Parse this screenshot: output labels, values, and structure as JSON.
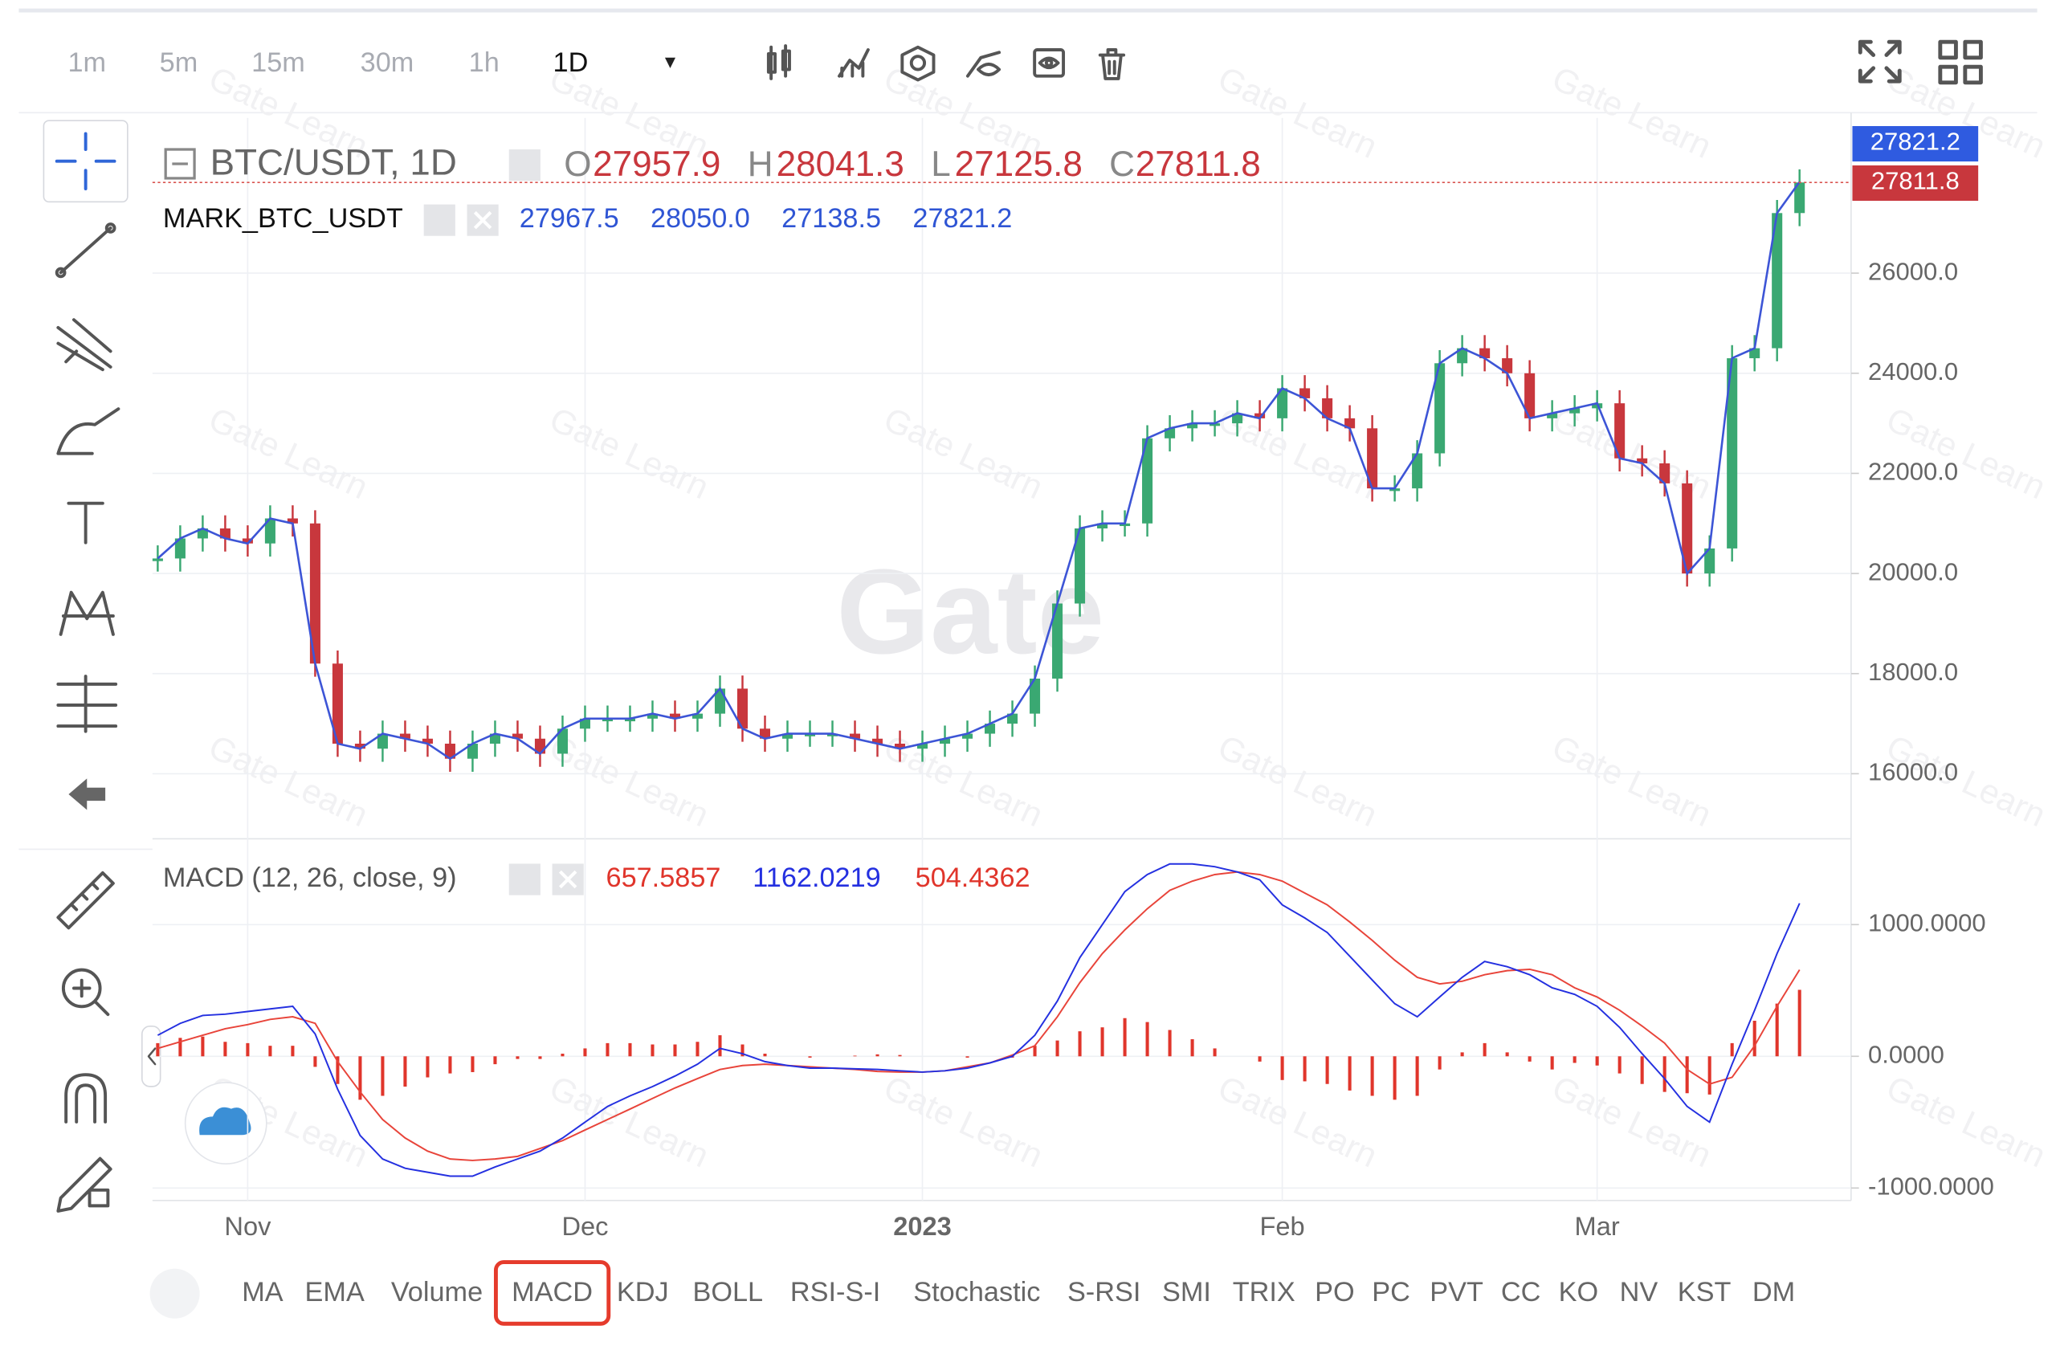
{
  "toolbar": {
    "intervals": [
      "1m",
      "5m",
      "15m",
      "30m",
      "1h",
      "1D"
    ]
  },
  "watermark": "Gate",
  "watermark_small": "Gate Learn",
  "chart_data": [
    {
      "type": "candlestick",
      "ohlc": [
        {
          "label": "O",
          "value": "27957.9"
        },
        {
          "label": "H",
          "value": "28041.3"
        },
        {
          "label": "L",
          "value": "27125.8"
        },
        {
          "label": "C",
          "value": "27811.8"
        }
      ],
      "mark_values": [
        "27967.5",
        "28050.0",
        "27138.5",
        "27821.2"
      ],
      "categories": [
        null,
        null,
        null,
        null,
        "Nov",
        null,
        null,
        null,
        null,
        null,
        null,
        null,
        null,
        null,
        null,
        null,
        null,
        null,
        null,
        "Dec",
        null,
        null,
        null,
        null,
        null,
        null,
        null,
        null,
        null,
        null,
        null,
        null,
        null,
        null,
        "2023",
        null,
        null,
        null,
        null,
        null,
        null,
        null,
        null,
        null,
        null,
        null,
        null,
        null,
        null,
        null,
        "Feb",
        null,
        null,
        null,
        null,
        null,
        null,
        null,
        null,
        null,
        null,
        null,
        null,
        null,
        "Mar",
        null,
        null,
        null,
        null,
        null,
        null,
        null,
        null,
        null
      ],
      "up_color": "#3aa872",
      "down_color": "#c8373d",
      "series": [
        {
          "name": "BTC/USDT, 1D",
          "values": [
            20300,
            20700,
            20900,
            20700,
            20600,
            21100,
            21000,
            18200,
            16600,
            16500,
            16800,
            16700,
            16600,
            16300,
            16600,
            16800,
            16700,
            16400,
            16900,
            17100,
            17100,
            17100,
            17200,
            17100,
            17200,
            17700,
            16900,
            16700,
            16800,
            16800,
            16800,
            16700,
            16600,
            16500,
            16600,
            16700,
            16800,
            17000,
            17200,
            17900,
            19400,
            20900,
            21000,
            21000,
            22700,
            22900,
            23000,
            23000,
            23200,
            23100,
            23700,
            23500,
            23100,
            22900,
            21700,
            21700,
            22400,
            24200,
            24500,
            24300,
            24000,
            23100,
            23200,
            23300,
            23400,
            22300,
            22200,
            21800,
            20000,
            20500,
            24300,
            24500,
            27200,
            27811.8
          ]
        },
        {
          "name": "MARK_BTC_USDT",
          "color": "#3d55d6",
          "values": [
            20300,
            20700,
            20900,
            20700,
            20600,
            21100,
            21000,
            18200,
            16600,
            16500,
            16800,
            16700,
            16600,
            16300,
            16600,
            16800,
            16700,
            16400,
            16900,
            17100,
            17100,
            17100,
            17200,
            17100,
            17200,
            17700,
            16900,
            16700,
            16800,
            16800,
            16800,
            16700,
            16600,
            16500,
            16600,
            16700,
            16800,
            17000,
            17200,
            17900,
            19400,
            20900,
            21000,
            21000,
            22700,
            22900,
            23000,
            23000,
            23200,
            23100,
            23700,
            23500,
            23100,
            22900,
            21700,
            21700,
            22400,
            24200,
            24500,
            24300,
            24000,
            23100,
            23200,
            23300,
            23400,
            22300,
            22200,
            21800,
            20000,
            20500,
            24300,
            24500,
            27200,
            27821.2
          ]
        }
      ],
      "ylim": [
        14700,
        29100
      ],
      "yticks": [
        {
          "value": 16000,
          "label": "16000.0"
        },
        {
          "value": 18000,
          "label": "18000.0"
        },
        {
          "value": 20000,
          "label": "20000.0"
        },
        {
          "value": 22000,
          "label": "22000.0"
        },
        {
          "value": 24000,
          "label": "24000.0"
        },
        {
          "value": 26000,
          "label": "26000.0"
        }
      ],
      "grid": true
    },
    {
      "type": "macd",
      "title": "MACD (12, 26, close, 9)",
      "series": [
        {
          "color": "#e8443a",
          "values": [
            60,
            110,
            160,
            210,
            240,
            280,
            300,
            250,
            -40,
            -270,
            -480,
            -620,
            -720,
            -780,
            -790,
            -780,
            -760,
            -700,
            -640,
            -560,
            -480,
            -400,
            -320,
            -240,
            -170,
            -100,
            -70,
            -60,
            -70,
            -80,
            -90,
            -100,
            -115,
            -120,
            -120,
            -110,
            -80,
            -50,
            10,
            80,
            300,
            560,
            780,
            960,
            1120,
            1260,
            1330,
            1380,
            1400,
            1380,
            1330,
            1240,
            1150,
            1020,
            880,
            730,
            600,
            550,
            570,
            620,
            650,
            660,
            620,
            520,
            450,
            350,
            230,
            100,
            -100,
            -210,
            -160,
            80,
            380,
            657.5857
          ]
        },
        {
          "color": "#2430e0",
          "values": [
            160,
            250,
            310,
            320,
            340,
            360,
            380,
            170,
            -250,
            -600,
            -780,
            -850,
            -880,
            -910,
            -910,
            -840,
            -780,
            -720,
            -620,
            -500,
            -380,
            -300,
            -230,
            -150,
            -60,
            60,
            20,
            -40,
            -70,
            -90,
            -90,
            -95,
            -100,
            -110,
            -120,
            -110,
            -90,
            -50,
            0,
            160,
            420,
            750,
            1000,
            1250,
            1380,
            1460,
            1460,
            1440,
            1400,
            1340,
            1150,
            1050,
            940,
            760,
            580,
            400,
            300,
            450,
            600,
            720,
            680,
            620,
            520,
            470,
            380,
            220,
            20,
            -170,
            -380,
            -500,
            -60,
            350,
            780,
            1162.0219
          ]
        },
        {
          "color": "#e0352b",
          "values": [
            100,
            140,
            150,
            110,
            100,
            80,
            80,
            -80,
            -210,
            -330,
            -300,
            -230,
            -160,
            -130,
            -120,
            -60,
            -20,
            -20,
            20,
            60,
            100,
            100,
            90,
            90,
            110,
            160,
            90,
            20,
            0,
            -10,
            0,
            5,
            15,
            10,
            0,
            0,
            -10,
            0,
            -10,
            80,
            120,
            190,
            220,
            290,
            260,
            200,
            130,
            60,
            0,
            -40,
            -180,
            -190,
            -210,
            -260,
            -300,
            -330,
            -300,
            -100,
            30,
            100,
            30,
            -40,
            -100,
            -50,
            -70,
            -130,
            -210,
            -270,
            -280,
            -290,
            100,
            270,
            400,
            504.4362
          ]
        }
      ],
      "ylim": [
        -1085,
        1552
      ],
      "yticks": [
        {
          "value": -1000,
          "label": "-1000.0000"
        },
        {
          "value": 0,
          "label": "0.0000"
        },
        {
          "value": 1000,
          "label": "1000.0000"
        }
      ],
      "grid": true
    }
  ],
  "indicator_tabs": {
    "items": [
      "MA",
      "EMA",
      "Volume",
      "MACD",
      "KDJ",
      "BOLL",
      "RSI-S-I",
      "Stochastic",
      "S-RSI",
      "SMI",
      "TRIX",
      "PO",
      "PC",
      "PVT",
      "CC",
      "KO",
      "NV",
      "KST",
      "DM"
    ],
    "active": 3
  }
}
